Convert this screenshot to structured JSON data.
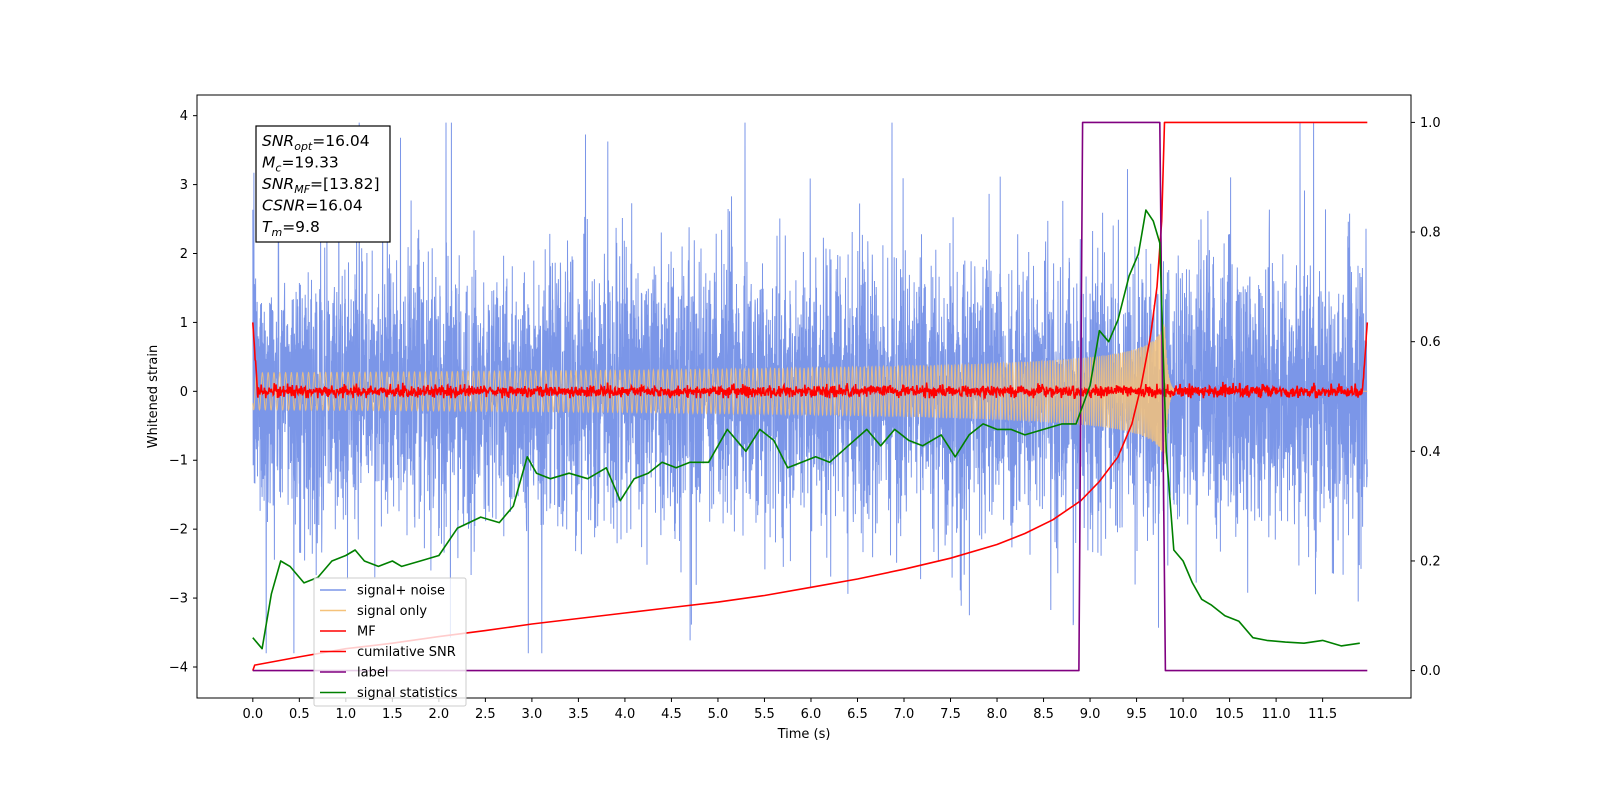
{
  "chart_data": {
    "type": "line",
    "xlabel": "Time (s)",
    "ylabel": "Whitened strain",
    "xlim": [
      -0.6,
      12.45
    ],
    "ylim": [
      -4.45,
      4.3
    ],
    "ylim_right": [
      -0.05,
      1.05
    ],
    "xticks": [
      "0.0",
      "0.5",
      "1.0",
      "1.5",
      "2.0",
      "2.5",
      "3.0",
      "3.5",
      "4.0",
      "4.5",
      "5.0",
      "5.5",
      "6.0",
      "6.5",
      "7.0",
      "7.5",
      "8.0",
      "8.5",
      "9.0",
      "9.5",
      "10.0",
      "10.5",
      "11.0",
      "11.5"
    ],
    "xtick_values": [
      0,
      0.5,
      1,
      1.5,
      2,
      2.5,
      3,
      3.5,
      4,
      4.5,
      5,
      5.5,
      6,
      6.5,
      7,
      7.5,
      8,
      8.5,
      9,
      9.5,
      10,
      10.5,
      11,
      11.5
    ],
    "yticks": [
      "4",
      "3",
      "2",
      "1",
      "0",
      "−1",
      "−2",
      "−3",
      "−4"
    ],
    "ytick_values": [
      4,
      3,
      2,
      1,
      0,
      -1,
      -2,
      -3,
      -4
    ],
    "yticks_right": [
      "1.0",
      "0.8",
      "0.6",
      "0.4",
      "0.2",
      "0.0"
    ],
    "ytick_values_right": [
      1,
      0.8,
      0.6,
      0.4,
      0.2,
      0
    ],
    "grid": false,
    "legend_position": "bottom-left",
    "series": [
      {
        "name": "signal+ noise",
        "color": "#7b96e8",
        "axis": "left",
        "style": "noise",
        "x_range": [
          0,
          11.98
        ],
        "amplitude_range": [
          -3.8,
          3.9
        ]
      },
      {
        "name": "signal only",
        "color": "#f5c27a",
        "axis": "left",
        "style": "chirp",
        "merger_time": 9.8,
        "peak_amplitude": 1.4
      },
      {
        "name": "MF",
        "color": "#ff0000",
        "axis": "left",
        "style": "small-noise",
        "x_range": [
          0,
          11.98
        ],
        "amplitude_range": [
          -0.1,
          0.2
        ],
        "end_values": [
          1.0,
          1.0
        ]
      },
      {
        "name": "cumilative SNR",
        "color": "#ff0000",
        "axis": "right",
        "x": [
          0,
          0.02,
          0.5,
          1.0,
          1.5,
          2.0,
          2.5,
          3.0,
          3.5,
          4.0,
          4.5,
          5.0,
          5.5,
          6.0,
          6.5,
          7.0,
          7.5,
          8.0,
          8.3,
          8.6,
          8.9,
          9.1,
          9.3,
          9.45,
          9.55,
          9.65,
          9.72,
          9.77,
          9.8,
          11.98
        ],
        "y": [
          0.0,
          0.01,
          0.025,
          0.04,
          0.05,
          0.062,
          0.073,
          0.085,
          0.095,
          0.105,
          0.115,
          0.125,
          0.137,
          0.152,
          0.167,
          0.185,
          0.205,
          0.23,
          0.25,
          0.275,
          0.31,
          0.345,
          0.39,
          0.45,
          0.52,
          0.61,
          0.7,
          0.82,
          1.0,
          1.0
        ]
      },
      {
        "name": "label",
        "color": "#800080",
        "axis": "right",
        "x": [
          0,
          8.88,
          8.92,
          9.75,
          9.81,
          11.98
        ],
        "y": [
          0,
          0,
          1,
          1,
          0,
          0
        ]
      },
      {
        "name": "signal statistics",
        "color": "#008000",
        "axis": "right",
        "x": [
          0,
          0.1,
          0.2,
          0.3,
          0.4,
          0.55,
          0.7,
          0.85,
          1.0,
          1.1,
          1.2,
          1.35,
          1.5,
          1.6,
          1.8,
          2.0,
          2.2,
          2.45,
          2.65,
          2.8,
          2.95,
          3.05,
          3.2,
          3.4,
          3.6,
          3.8,
          3.95,
          4.1,
          4.25,
          4.4,
          4.55,
          4.7,
          4.9,
          5.1,
          5.3,
          5.45,
          5.6,
          5.75,
          5.9,
          6.05,
          6.2,
          6.4,
          6.6,
          6.75,
          6.9,
          7.05,
          7.2,
          7.4,
          7.55,
          7.7,
          7.85,
          8.0,
          8.15,
          8.3,
          8.5,
          8.7,
          8.85,
          9.0,
          9.1,
          9.2,
          9.3,
          9.42,
          9.52,
          9.6,
          9.68,
          9.75,
          9.82,
          9.9,
          10.0,
          10.1,
          10.2,
          10.3,
          10.45,
          10.6,
          10.75,
          10.9,
          11.1,
          11.3,
          11.5,
          11.7,
          11.9
        ],
        "y": [
          0.06,
          0.04,
          0.14,
          0.2,
          0.19,
          0.16,
          0.17,
          0.2,
          0.21,
          0.22,
          0.2,
          0.19,
          0.2,
          0.19,
          0.2,
          0.21,
          0.26,
          0.28,
          0.27,
          0.3,
          0.39,
          0.36,
          0.35,
          0.36,
          0.35,
          0.37,
          0.31,
          0.35,
          0.36,
          0.38,
          0.37,
          0.38,
          0.38,
          0.44,
          0.4,
          0.44,
          0.42,
          0.37,
          0.38,
          0.39,
          0.38,
          0.41,
          0.44,
          0.41,
          0.44,
          0.42,
          0.41,
          0.43,
          0.39,
          0.43,
          0.45,
          0.44,
          0.44,
          0.43,
          0.44,
          0.45,
          0.45,
          0.52,
          0.62,
          0.6,
          0.64,
          0.72,
          0.76,
          0.84,
          0.82,
          0.78,
          0.4,
          0.22,
          0.2,
          0.16,
          0.13,
          0.12,
          0.1,
          0.09,
          0.06,
          0.055,
          0.052,
          0.05,
          0.055,
          0.045,
          0.05
        ]
      }
    ],
    "annotation": {
      "lines": [
        {
          "base": "SNR",
          "sub": "opt",
          "value": "=16.04"
        },
        {
          "base": "M",
          "sub": "c",
          "value": "=19.33"
        },
        {
          "base": "SNR",
          "sub": "MF",
          "value": "=[13.82]"
        },
        {
          "base": "CSNR",
          "sub": "",
          "value": "=16.04"
        },
        {
          "base": "T",
          "sub": "m",
          "value": "=9.8"
        }
      ]
    }
  }
}
